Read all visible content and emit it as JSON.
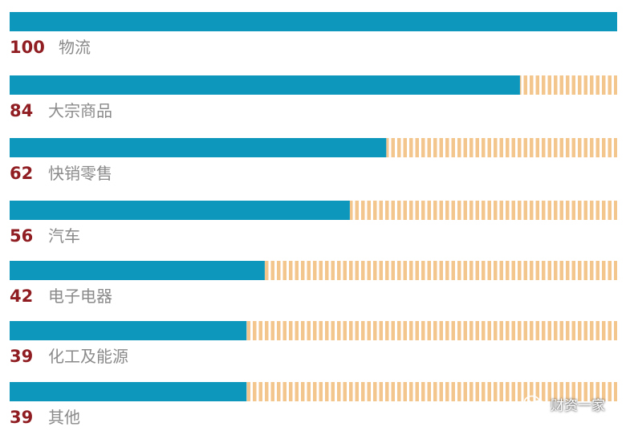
{
  "chart_data": {
    "type": "bar",
    "orientation": "horizontal",
    "categories": [
      "物流",
      "大宗商品",
      "快销零售",
      "汽车",
      "电子电器",
      "化工及能源",
      "其他"
    ],
    "values": [
      100,
      84,
      62,
      56,
      42,
      39,
      39
    ],
    "xlim": [
      0,
      100
    ],
    "grid": false,
    "legend": "none",
    "colors": {
      "bar": "#0e97bd",
      "remainder": "#f3c68e",
      "value_text": "#8f1d22",
      "label_text": "#8a8a8a"
    }
  },
  "watermark": {
    "icon": "wechat-icon",
    "text": "财资一家"
  }
}
